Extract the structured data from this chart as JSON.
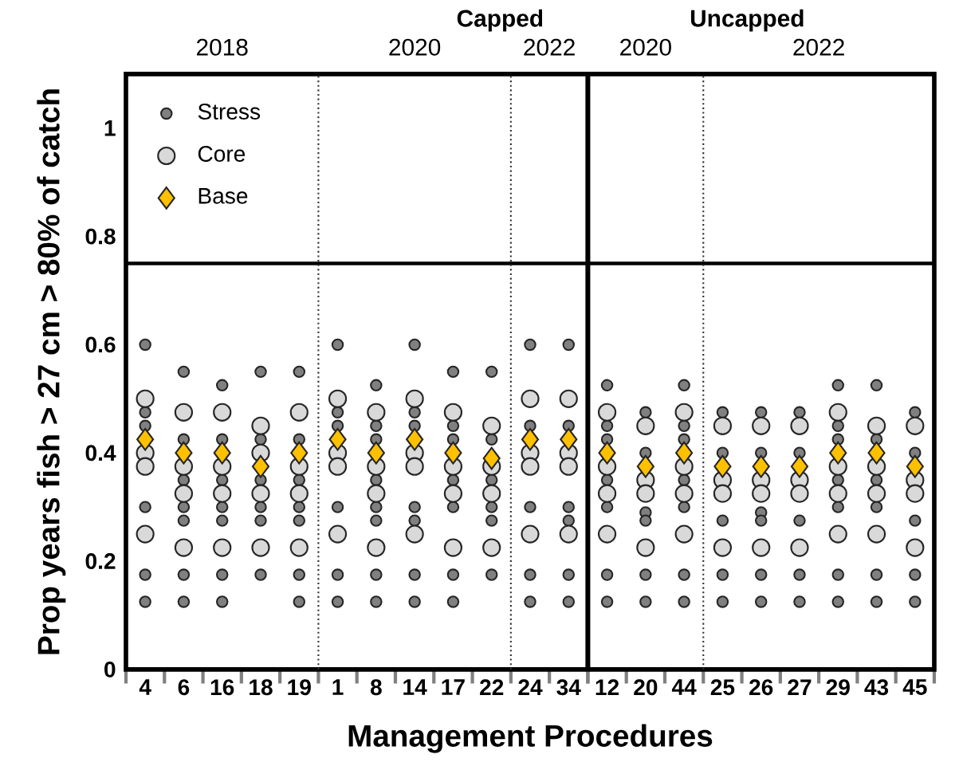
{
  "chart_data": [
    {
      "type": "scatter",
      "title": "Capped",
      "xlabel": "Management Procedures",
      "ylabel": "Prop years fish > 27 cm > 80% of catch",
      "categories": [
        "4",
        "6",
        "16",
        "18",
        "19",
        "1",
        "8",
        "14",
        "17",
        "22",
        "24",
        "34"
      ],
      "annotations": [
        "2018",
        "2020",
        "2022"
      ],
      "ylim": [
        0,
        1.1
      ],
      "yticks": [
        0,
        0.2,
        0.4,
        0.6,
        0.8,
        1
      ],
      "legend": "top left",
      "ref_lines": [
        {
          "axis": "y",
          "value": 0.75,
          "line_style": "solid"
        }
      ],
      "series": [
        {
          "name": "Stress",
          "color": "#808080",
          "marker": "circle",
          "x": [
            "4",
            "4",
            "4",
            "4",
            "4",
            "4",
            "6",
            "6",
            "6",
            "6",
            "6",
            "6",
            "6",
            "16",
            "16",
            "16",
            "16",
            "16",
            "16",
            "16",
            "18",
            "18",
            "18",
            "18",
            "18",
            "18",
            "19",
            "19",
            "19",
            "19",
            "19",
            "19",
            "19",
            "1",
            "1",
            "1",
            "1",
            "1",
            "1",
            "8",
            "8",
            "8",
            "8",
            "8",
            "8",
            "8",
            "8",
            "14",
            "14",
            "14",
            "14",
            "14",
            "14",
            "14",
            "17",
            "17",
            "17",
            "17",
            "17",
            "17",
            "17",
            "22",
            "22",
            "22",
            "22",
            "22",
            "22",
            "24",
            "24",
            "24",
            "24",
            "24",
            "34",
            "34",
            "34",
            "34",
            "34",
            "34"
          ],
          "values": [
            0.6,
            0.475,
            0.45,
            0.3,
            0.175,
            0.125,
            0.55,
            0.425,
            0.35,
            0.3,
            0.275,
            0.175,
            0.125,
            0.525,
            0.425,
            0.35,
            0.3,
            0.275,
            0.175,
            0.125,
            0.55,
            0.425,
            0.35,
            0.3,
            0.275,
            0.175,
            0.55,
            0.425,
            0.35,
            0.3,
            0.275,
            0.175,
            0.125,
            0.6,
            0.475,
            0.45,
            0.3,
            0.175,
            0.125,
            0.525,
            0.45,
            0.425,
            0.35,
            0.3,
            0.275,
            0.175,
            0.125,
            0.6,
            0.475,
            0.45,
            0.3,
            0.275,
            0.175,
            0.125,
            0.55,
            0.45,
            0.425,
            0.35,
            0.3,
            0.175,
            0.125,
            0.55,
            0.425,
            0.35,
            0.3,
            0.275,
            0.175,
            0.6,
            0.45,
            0.3,
            0.175,
            0.125,
            0.6,
            0.45,
            0.3,
            0.275,
            0.175,
            0.125
          ]
        },
        {
          "name": "Core",
          "color": "#d9d9d9",
          "marker": "circle",
          "x": [
            "4",
            "4",
            "4",
            "4",
            "6",
            "6",
            "6",
            "6",
            "16",
            "16",
            "16",
            "16",
            "18",
            "18",
            "18",
            "18",
            "19",
            "19",
            "19",
            "19",
            "1",
            "1",
            "1",
            "1",
            "8",
            "8",
            "8",
            "8",
            "14",
            "14",
            "14",
            "14",
            "17",
            "17",
            "17",
            "17",
            "22",
            "22",
            "22",
            "22",
            "22",
            "24",
            "24",
            "24",
            "24",
            "34",
            "34",
            "34",
            "34"
          ],
          "values": [
            0.5,
            0.4,
            0.375,
            0.25,
            0.475,
            0.375,
            0.325,
            0.225,
            0.475,
            0.375,
            0.325,
            0.225,
            0.45,
            0.4,
            0.325,
            0.225,
            0.475,
            0.375,
            0.325,
            0.225,
            0.5,
            0.4,
            0.375,
            0.25,
            0.475,
            0.375,
            0.325,
            0.225,
            0.5,
            0.4,
            0.375,
            0.25,
            0.475,
            0.375,
            0.325,
            0.225,
            0.45,
            null,
            0.375,
            0.325,
            0.225,
            0.5,
            0.4,
            0.375,
            0.25,
            0.5,
            0.4,
            0.375,
            0.25
          ]
        },
        {
          "name": "Base",
          "color": "#ffc000",
          "marker": "diamond",
          "values": [
            0.425,
            0.4,
            0.4,
            0.375,
            0.4,
            0.425,
            0.4,
            0.425,
            0.4,
            0.39,
            0.425,
            0.425
          ]
        }
      ]
    },
    {
      "type": "scatter",
      "title": "Uncapped",
      "categories": [
        "12",
        "20",
        "44",
        "25",
        "26",
        "27",
        "29",
        "43",
        "45"
      ],
      "annotations": [
        "2020",
        "2022"
      ],
      "ylim": [
        0,
        1.1
      ],
      "tick_labels": "x",
      "ref_lines": [
        {
          "axis": "y",
          "value": 0.75,
          "line_style": "solid"
        }
      ],
      "series": [
        {
          "color": "#808080",
          "marker": "circle",
          "x": [
            "12",
            "12",
            "12",
            "12",
            "12",
            "12",
            "12",
            "20",
            "20",
            "20",
            "20",
            "20",
            "20",
            "44",
            "44",
            "44",
            "44",
            "44",
            "44",
            "44",
            "25",
            "25",
            "25",
            "25",
            "25",
            "26",
            "26",
            "26",
            "26",
            "26",
            "26",
            "27",
            "27",
            "27",
            "27",
            "27",
            "29",
            "29",
            "29",
            "29",
            "29",
            "29",
            "29",
            "43",
            "43",
            "43",
            "43",
            "43",
            "43",
            "45",
            "45",
            "45",
            "45",
            "45"
          ],
          "values": [
            0.525,
            0.45,
            0.425,
            0.35,
            0.3,
            0.175,
            0.125,
            0.475,
            0.4,
            0.29,
            0.275,
            0.175,
            0.125,
            0.525,
            0.45,
            0.425,
            0.35,
            0.3,
            0.175,
            0.125,
            0.475,
            0.4,
            0.275,
            0.175,
            0.125,
            0.475,
            0.4,
            0.29,
            0.275,
            0.175,
            0.125,
            0.475,
            0.4,
            0.275,
            0.175,
            0.125,
            0.525,
            0.45,
            0.425,
            0.35,
            0.3,
            0.175,
            0.125,
            0.525,
            0.425,
            0.35,
            0.3,
            0.175,
            0.125,
            0.475,
            0.4,
            0.275,
            0.175,
            0.125
          ]
        },
        {
          "color": "#d9d9d9",
          "marker": "circle",
          "x": [
            "12",
            "12",
            "12",
            "12",
            "20",
            "20",
            "20",
            "20",
            "44",
            "44",
            "44",
            "44",
            "25",
            "25",
            "25",
            "25",
            "26",
            "26",
            "26",
            "26",
            "27",
            "27",
            "27",
            "27",
            "29",
            "29",
            "29",
            "29",
            "43",
            "43",
            "43",
            "43",
            "45",
            "45",
            "45",
            "45"
          ],
          "values": [
            0.475,
            0.375,
            0.325,
            0.25,
            0.45,
            0.35,
            0.325,
            0.225,
            0.475,
            0.375,
            0.325,
            0.25,
            0.45,
            0.35,
            0.325,
            0.225,
            0.45,
            0.35,
            0.325,
            0.225,
            0.45,
            0.35,
            0.325,
            0.225,
            0.475,
            0.375,
            0.325,
            0.25,
            0.45,
            0.375,
            0.325,
            0.25,
            0.45,
            0.35,
            0.325,
            0.225
          ]
        },
        {
          "color": "#ffc000",
          "marker": "diamond",
          "values": [
            0.4,
            0.375,
            0.4,
            0.375,
            0.375,
            0.375,
            0.4,
            0.4,
            0.375
          ]
        }
      ]
    }
  ]
}
